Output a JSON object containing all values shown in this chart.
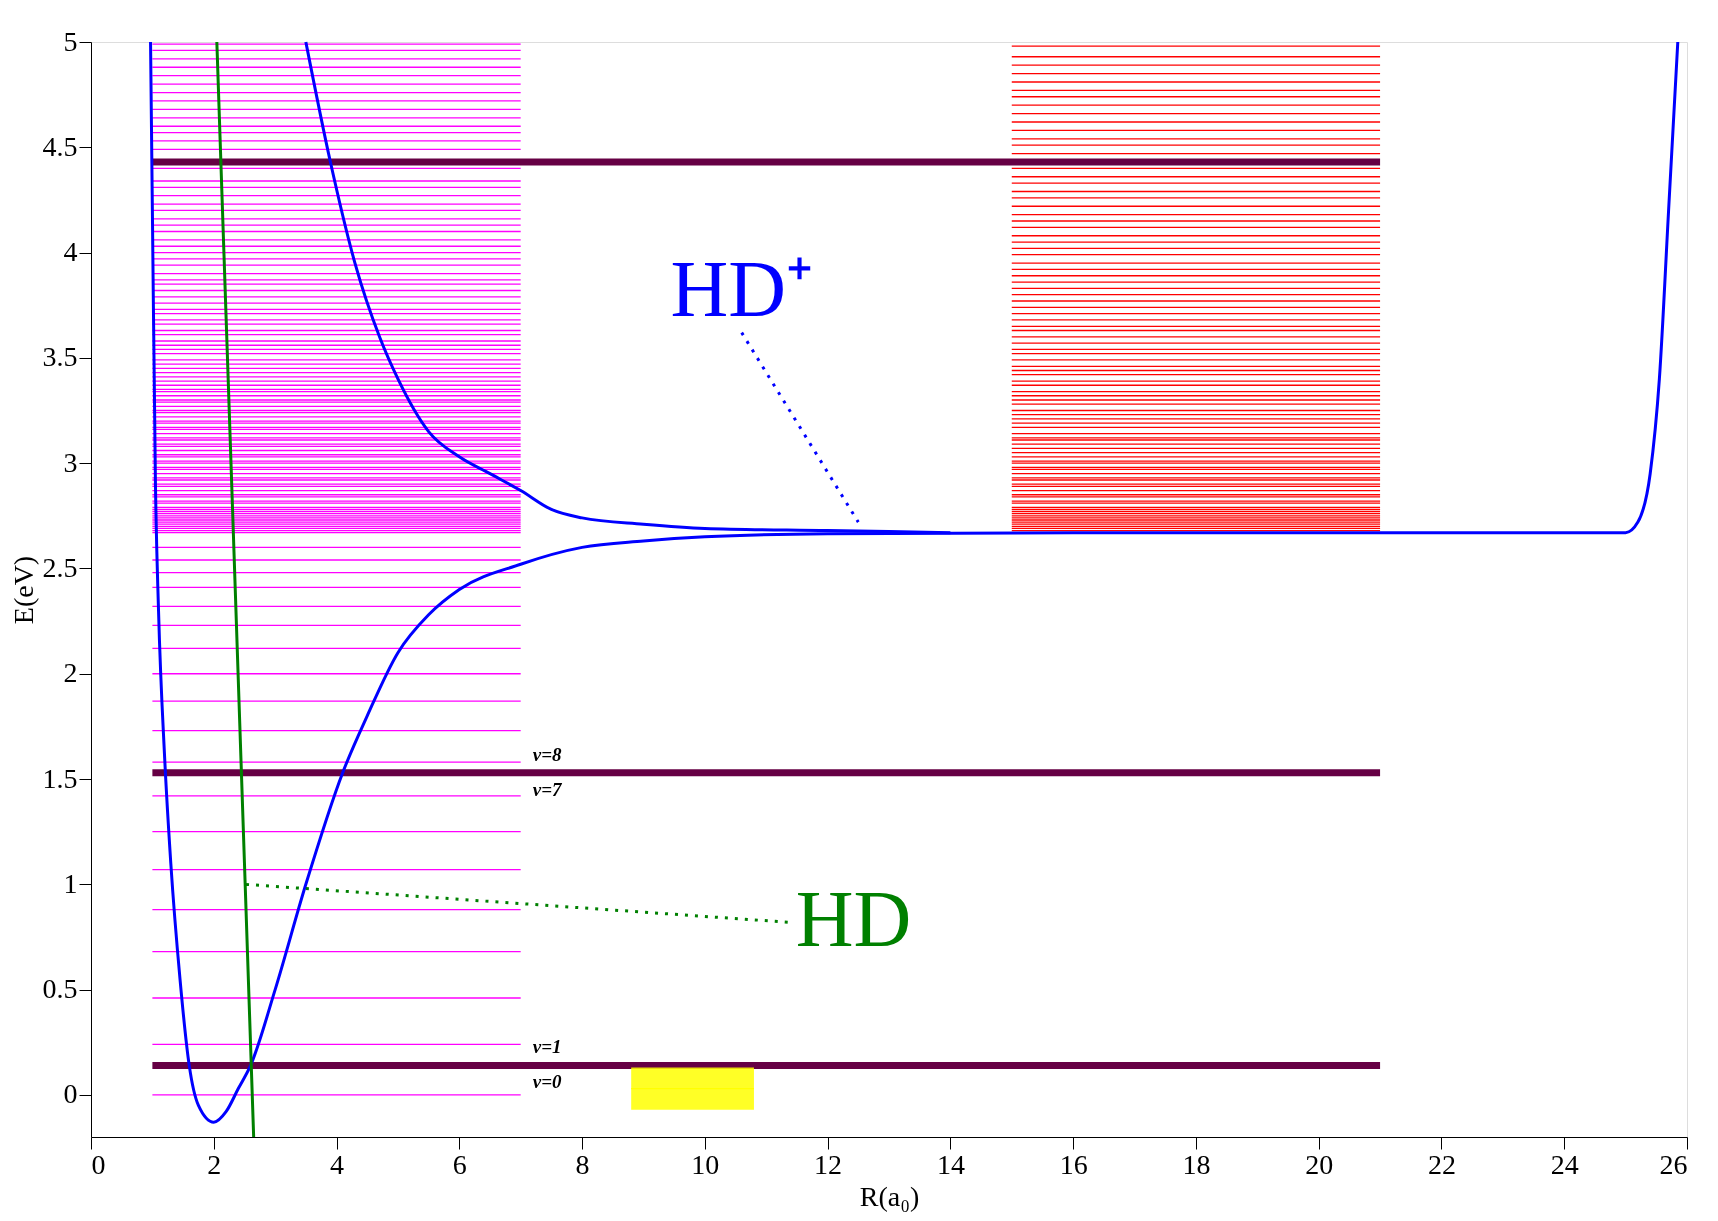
{
  "chart_data": {
    "type": "line",
    "xlabel": "R(a₀)",
    "ylabel": "E(eV)",
    "xlim": [
      0,
      26
    ],
    "ylim": [
      -0.2,
      5
    ],
    "xticks": [
      0,
      2,
      4,
      6,
      8,
      10,
      12,
      14,
      16,
      18,
      20,
      22,
      24,
      26
    ],
    "yticks": [
      0,
      0.5,
      1,
      1.5,
      2,
      2.5,
      3,
      3.5,
      4,
      4.5,
      5
    ],
    "grid": false,
    "annotations": [
      "HD⁺",
      "HD",
      "v=8",
      "v=7",
      "v=1",
      "v=0"
    ],
    "series": [
      {
        "color": "#ff00ff",
        "x": [
          1,
          7
        ],
        "values": [
          4.99,
          4.99
        ]
      },
      {
        "color": "#ff00ff",
        "x": [
          1,
          7
        ],
        "values": [
          4.96,
          4.96
        ]
      },
      {
        "color": "#ff00ff",
        "x": [
          1,
          7
        ],
        "values": [
          4.92,
          4.92
        ]
      },
      {
        "color": "#ff00ff",
        "x": [
          1,
          7
        ],
        "values": [
          4.88,
          4.88
        ]
      },
      {
        "color": "#ff00ff",
        "x": [
          1,
          7
        ],
        "values": [
          4.84,
          4.84
        ]
      },
      {
        "color": "#ff00ff",
        "x": [
          1,
          7
        ],
        "values": [
          4.8,
          4.8
        ]
      },
      {
        "color": "#ff00ff",
        "x": [
          1,
          7
        ],
        "values": [
          4.76,
          4.76
        ]
      },
      {
        "color": "#ff00ff",
        "x": [
          1,
          7
        ],
        "values": [
          4.72,
          4.72
        ]
      },
      {
        "color": "#ff00ff",
        "x": [
          1,
          7
        ],
        "values": [
          4.68,
          4.68
        ]
      },
      {
        "color": "#ff00ff",
        "x": [
          1,
          7
        ],
        "values": [
          4.64,
          4.64
        ]
      },
      {
        "color": "#ff00ff",
        "x": [
          1,
          7
        ],
        "values": [
          4.6,
          4.6
        ]
      },
      {
        "color": "#ff00ff",
        "x": [
          1,
          7
        ],
        "values": [
          4.57,
          4.57
        ]
      },
      {
        "color": "#ff00ff",
        "x": [
          1,
          7
        ],
        "values": [
          4.53,
          4.53
        ]
      },
      {
        "color": "#ff00ff",
        "x": [
          1,
          7
        ],
        "values": [
          4.49,
          4.49
        ]
      },
      {
        "color": "#ff00ff",
        "x": [
          1,
          7
        ],
        "values": [
          4.4,
          4.4
        ]
      },
      {
        "color": "#ff00ff",
        "x": [
          1,
          7
        ],
        "values": [
          4.34,
          4.34
        ]
      },
      {
        "color": "#ff00ff",
        "x": [
          1,
          7
        ],
        "values": [
          4.31,
          4.31
        ]
      },
      {
        "color": "#ff00ff",
        "x": [
          1,
          7
        ],
        "values": [
          4.27,
          4.27
        ]
      },
      {
        "color": "#ff00ff",
        "x": [
          1,
          7
        ],
        "values": [
          4.23,
          4.23
        ]
      },
      {
        "color": "#ff00ff",
        "x": [
          1,
          7
        ],
        "values": [
          4.2,
          4.2
        ]
      },
      {
        "color": "#ff00ff",
        "x": [
          1,
          7
        ],
        "values": [
          4.16,
          4.16
        ]
      },
      {
        "color": "#ff00ff",
        "x": [
          1,
          7
        ],
        "values": [
          4.13,
          4.13
        ]
      },
      {
        "color": "#ff00ff",
        "x": [
          1,
          7
        ],
        "values": [
          4.1,
          4.1
        ]
      },
      {
        "color": "#ff00ff",
        "x": [
          1,
          7
        ],
        "values": [
          4.06,
          4.06
        ]
      },
      {
        "color": "#ff00ff",
        "x": [
          1,
          7
        ],
        "values": [
          4.03,
          4.03
        ]
      },
      {
        "color": "#ff00ff",
        "x": [
          1,
          7
        ],
        "values": [
          4.0,
          4.0
        ]
      },
      {
        "color": "#ff00ff",
        "x": [
          1,
          7
        ],
        "values": [
          3.97,
          3.97
        ]
      },
      {
        "color": "#ff00ff",
        "x": [
          1,
          7
        ],
        "values": [
          3.94,
          3.94
        ]
      },
      {
        "color": "#ff00ff",
        "x": [
          1,
          7
        ],
        "values": [
          3.9,
          3.9
        ]
      },
      {
        "color": "#ff00ff",
        "x": [
          1,
          7
        ],
        "values": [
          3.87,
          3.87
        ]
      },
      {
        "color": "#ff00ff",
        "x": [
          1,
          7
        ],
        "values": [
          3.85,
          3.85
        ]
      },
      {
        "color": "#ff00ff",
        "x": [
          1,
          7
        ],
        "values": [
          3.82,
          3.82
        ]
      },
      {
        "color": "#ff00ff",
        "x": [
          1,
          7
        ],
        "values": [
          3.79,
          3.79
        ]
      },
      {
        "color": "#ff00ff",
        "x": [
          1,
          7
        ],
        "values": [
          3.76,
          3.76
        ]
      },
      {
        "color": "#ff00ff",
        "x": [
          1,
          7
        ],
        "values": [
          3.73,
          3.73
        ]
      },
      {
        "color": "#ff00ff",
        "x": [
          1,
          7
        ],
        "values": [
          3.71,
          3.71
        ]
      },
      {
        "color": "#ff00ff",
        "x": [
          1,
          7
        ],
        "values": [
          3.68,
          3.68
        ]
      },
      {
        "color": "#ff00ff",
        "x": [
          1,
          7
        ],
        "values": [
          3.66,
          3.66
        ]
      },
      {
        "color": "#ff00ff",
        "x": [
          1,
          7
        ],
        "values": [
          3.63,
          3.63
        ]
      },
      {
        "color": "#ff00ff",
        "x": [
          1,
          7
        ],
        "values": [
          3.61,
          3.61
        ]
      },
      {
        "color": "#ff00ff",
        "x": [
          1,
          7
        ],
        "values": [
          3.58,
          3.58
        ]
      },
      {
        "color": "#ff00ff",
        "x": [
          1,
          7
        ],
        "values": [
          3.56,
          3.56
        ]
      },
      {
        "color": "#ff00ff",
        "x": [
          1,
          7
        ],
        "values": [
          3.54,
          3.54
        ]
      },
      {
        "color": "#ff00ff",
        "x": [
          1,
          7
        ],
        "values": [
          3.52,
          3.52
        ]
      },
      {
        "color": "#ff00ff",
        "x": [
          1,
          7
        ],
        "values": [
          3.49,
          3.49
        ]
      },
      {
        "color": "#ff00ff",
        "x": [
          1,
          7
        ],
        "values": [
          3.47,
          3.47
        ]
      },
      {
        "color": "#ff00ff",
        "x": [
          1,
          7
        ],
        "values": [
          3.45,
          3.45
        ]
      },
      {
        "color": "#ff00ff",
        "x": [
          1,
          7
        ],
        "values": [
          3.43,
          3.43
        ]
      },
      {
        "color": "#ff00ff",
        "x": [
          1,
          7
        ],
        "values": [
          3.41,
          3.41
        ]
      },
      {
        "color": "#ff00ff",
        "x": [
          1,
          7
        ],
        "values": [
          3.39,
          3.39
        ]
      },
      {
        "color": "#ff00ff",
        "x": [
          1,
          7
        ],
        "values": [
          3.37,
          3.37
        ]
      },
      {
        "color": "#ff00ff",
        "x": [
          1,
          7
        ],
        "values": [
          3.35,
          3.35
        ]
      },
      {
        "color": "#ff00ff",
        "x": [
          1,
          7
        ],
        "values": [
          3.34,
          3.34
        ]
      },
      {
        "color": "#ff00ff",
        "x": [
          1,
          7
        ],
        "values": [
          3.32,
          3.32
        ]
      },
      {
        "color": "#ff00ff",
        "x": [
          1,
          7
        ],
        "values": [
          3.3,
          3.3
        ]
      },
      {
        "color": "#ff00ff",
        "x": [
          1,
          7
        ],
        "values": [
          3.29,
          3.29
        ]
      },
      {
        "color": "#ff00ff",
        "x": [
          1,
          7
        ],
        "values": [
          3.27,
          3.27
        ]
      },
      {
        "color": "#ff00ff",
        "x": [
          1,
          7
        ],
        "values": [
          3.25,
          3.25
        ]
      },
      {
        "color": "#ff00ff",
        "x": [
          1,
          7
        ],
        "values": [
          3.24,
          3.24
        ]
      },
      {
        "color": "#ff00ff",
        "x": [
          1,
          7
        ],
        "values": [
          3.22,
          3.22
        ]
      },
      {
        "color": "#ff00ff",
        "x": [
          1,
          7
        ],
        "values": [
          3.2,
          3.2
        ]
      },
      {
        "color": "#ff00ff",
        "x": [
          1,
          7
        ],
        "values": [
          3.19,
          3.19
        ]
      },
      {
        "color": "#ff00ff",
        "x": [
          1,
          7
        ],
        "values": [
          3.17,
          3.17
        ]
      },
      {
        "color": "#ff00ff",
        "x": [
          1,
          7
        ],
        "values": [
          3.16,
          3.16
        ]
      },
      {
        "color": "#ff00ff",
        "x": [
          1,
          7
        ],
        "values": [
          3.14,
          3.14
        ]
      },
      {
        "color": "#ff00ff",
        "x": [
          1,
          7
        ],
        "values": [
          3.12,
          3.12
        ]
      },
      {
        "color": "#ff00ff",
        "x": [
          1,
          7
        ],
        "values": [
          3.11,
          3.11
        ]
      },
      {
        "color": "#ff00ff",
        "x": [
          1,
          7
        ],
        "values": [
          3.09,
          3.09
        ]
      },
      {
        "color": "#ff00ff",
        "x": [
          1,
          7
        ],
        "values": [
          3.08,
          3.08
        ]
      },
      {
        "color": "#ff00ff",
        "x": [
          1,
          7
        ],
        "values": [
          3.06,
          3.06
        ]
      },
      {
        "color": "#ff00ff",
        "x": [
          1,
          7
        ],
        "values": [
          3.04,
          3.04
        ]
      },
      {
        "color": "#ff00ff",
        "x": [
          1,
          7
        ],
        "values": [
          3.03,
          3.03
        ]
      },
      {
        "color": "#ff00ff",
        "x": [
          1,
          7
        ],
        "values": [
          3.01,
          3.01
        ]
      },
      {
        "color": "#ff00ff",
        "x": [
          1,
          7
        ],
        "values": [
          3.0,
          3.0
        ]
      },
      {
        "color": "#ff00ff",
        "x": [
          1,
          7
        ],
        "values": [
          2.98,
          2.98
        ]
      },
      {
        "color": "#ff00ff",
        "x": [
          1,
          7
        ],
        "values": [
          2.97,
          2.97
        ]
      },
      {
        "color": "#ff00ff",
        "x": [
          1,
          7
        ],
        "values": [
          2.95,
          2.95
        ]
      },
      {
        "color": "#ff00ff",
        "x": [
          1,
          7
        ],
        "values": [
          2.93,
          2.93
        ]
      },
      {
        "color": "#ff00ff",
        "x": [
          1,
          7
        ],
        "values": [
          2.92,
          2.92
        ]
      },
      {
        "color": "#ff00ff",
        "x": [
          1,
          7
        ],
        "values": [
          2.9,
          2.9
        ]
      },
      {
        "color": "#ff00ff",
        "x": [
          1,
          7
        ],
        "values": [
          2.89,
          2.89
        ]
      },
      {
        "color": "#ff00ff",
        "x": [
          1,
          7
        ],
        "values": [
          2.87,
          2.87
        ]
      },
      {
        "color": "#ff00ff",
        "x": [
          1,
          7
        ],
        "values": [
          2.85,
          2.85
        ]
      },
      {
        "color": "#ff00ff",
        "x": [
          1,
          7
        ],
        "values": [
          2.84,
          2.84
        ]
      },
      {
        "color": "#ff00ff",
        "x": [
          1,
          7
        ],
        "values": [
          2.82,
          2.82
        ]
      },
      {
        "color": "#ff00ff",
        "x": [
          1,
          7
        ],
        "values": [
          2.81,
          2.81
        ]
      },
      {
        "color": "#ff00ff",
        "x": [
          1,
          7
        ],
        "values": [
          2.79,
          2.79
        ]
      },
      {
        "color": "#ff00ff",
        "x": [
          1,
          7
        ],
        "values": [
          2.78,
          2.78
        ]
      },
      {
        "color": "#ff00ff",
        "x": [
          1,
          7
        ],
        "values": [
          2.77,
          2.77
        ]
      },
      {
        "color": "#ff00ff",
        "x": [
          1,
          7
        ],
        "values": [
          2.76,
          2.76
        ]
      },
      {
        "color": "#ff00ff",
        "x": [
          1,
          7
        ],
        "values": [
          2.75,
          2.75
        ]
      },
      {
        "color": "#ff00ff",
        "x": [
          1,
          7
        ],
        "values": [
          2.74,
          2.74
        ]
      },
      {
        "color": "#ff00ff",
        "x": [
          1,
          7
        ],
        "values": [
          2.73,
          2.73
        ]
      },
      {
        "color": "#ff00ff",
        "x": [
          1,
          7
        ],
        "values": [
          2.72,
          2.72
        ]
      },
      {
        "color": "#ff00ff",
        "x": [
          1,
          7
        ],
        "values": [
          2.71,
          2.71
        ]
      },
      {
        "color": "#ff00ff",
        "x": [
          1,
          7
        ],
        "values": [
          2.7,
          2.7
        ]
      },
      {
        "color": "#ff00ff",
        "x": [
          1,
          7
        ],
        "values": [
          2.69,
          2.69
        ]
      },
      {
        "color": "#ff00ff",
        "x": [
          1,
          7
        ],
        "values": [
          2.68,
          2.68
        ]
      },
      {
        "color": "#ff00ff",
        "x": [
          1,
          7
        ],
        "values": [
          2.67,
          2.67
        ]
      },
      {
        "color": "#ff00ff",
        "x": [
          1,
          7
        ],
        "values": [
          2.6,
          2.6
        ]
      },
      {
        "color": "#ff00ff",
        "x": [
          1,
          7
        ],
        "values": [
          2.54,
          2.54
        ]
      },
      {
        "color": "#ff00ff",
        "x": [
          1,
          7
        ],
        "values": [
          2.48,
          2.48
        ]
      },
      {
        "color": "#ff00ff",
        "x": [
          1,
          7
        ],
        "values": [
          2.41,
          2.41
        ]
      },
      {
        "color": "#ff00ff",
        "x": [
          1,
          7
        ],
        "values": [
          2.32,
          2.32
        ]
      },
      {
        "color": "#ff00ff",
        "x": [
          1,
          7
        ],
        "values": [
          2.23,
          2.23
        ]
      },
      {
        "color": "#ff00ff",
        "x": [
          1,
          7
        ],
        "values": [
          2.12,
          2.12
        ]
      },
      {
        "color": "#ff00ff",
        "x": [
          1,
          7
        ],
        "values": [
          2.0,
          2.0
        ]
      },
      {
        "color": "#ff00ff",
        "x": [
          1,
          7
        ],
        "values": [
          1.87,
          1.87
        ]
      },
      {
        "color": "#ff00ff",
        "x": [
          1,
          7
        ],
        "values": [
          1.73,
          1.73
        ]
      },
      {
        "color": "#ff00ff",
        "x": [
          1,
          7
        ],
        "values": [
          1.58,
          1.58
        ]
      },
      {
        "color": "#ff00ff",
        "x": [
          1,
          7
        ],
        "values": [
          1.42,
          1.42
        ]
      },
      {
        "color": "#ff00ff",
        "x": [
          1,
          7
        ],
        "values": [
          1.25,
          1.25
        ]
      },
      {
        "color": "#ff00ff",
        "x": [
          1,
          7
        ],
        "values": [
          1.07,
          1.07
        ]
      },
      {
        "color": "#ff00ff",
        "x": [
          1,
          7
        ],
        "values": [
          0.88,
          0.88
        ]
      },
      {
        "color": "#ff00ff",
        "x": [
          1,
          7
        ],
        "values": [
          0.68,
          0.68
        ]
      },
      {
        "color": "#ff00ff",
        "x": [
          1,
          7
        ],
        "values": [
          0.46,
          0.46
        ]
      },
      {
        "color": "#ff00ff",
        "x": [
          1,
          7
        ],
        "values": [
          0.24,
          0.24
        ]
      },
      {
        "color": "#ff00ff",
        "x": [
          1,
          7
        ],
        "values": [
          0.0,
          0.0
        ]
      },
      {
        "color": "#ff0000",
        "x": [
          15,
          21
        ],
        "values": [
          4.98,
          4.98
        ]
      },
      {
        "color": "#ff0000",
        "x": [
          15,
          21
        ],
        "values": [
          4.93,
          4.93
        ]
      },
      {
        "color": "#ff0000",
        "x": [
          15,
          21
        ],
        "values": [
          4.89,
          4.89
        ]
      },
      {
        "color": "#ff0000",
        "x": [
          15,
          21
        ],
        "values": [
          4.85,
          4.85
        ]
      },
      {
        "color": "#ff0000",
        "x": [
          15,
          21
        ],
        "values": [
          4.81,
          4.81
        ]
      },
      {
        "color": "#ff0000",
        "x": [
          15,
          21
        ],
        "values": [
          4.77,
          4.77
        ]
      },
      {
        "color": "#ff0000",
        "x": [
          15,
          21
        ],
        "values": [
          4.74,
          4.74
        ]
      },
      {
        "color": "#ff0000",
        "x": [
          15,
          21
        ],
        "values": [
          4.7,
          4.7
        ]
      },
      {
        "color": "#ff0000",
        "x": [
          15,
          21
        ],
        "values": [
          4.66,
          4.66
        ]
      },
      {
        "color": "#ff0000",
        "x": [
          15,
          21
        ],
        "values": [
          4.62,
          4.62
        ]
      },
      {
        "color": "#ff0000",
        "x": [
          15,
          21
        ],
        "values": [
          4.58,
          4.58
        ]
      },
      {
        "color": "#ff0000",
        "x": [
          15,
          21
        ],
        "values": [
          4.54,
          4.54
        ]
      },
      {
        "color": "#ff0000",
        "x": [
          15,
          21
        ],
        "values": [
          4.51,
          4.51
        ]
      },
      {
        "color": "#ff0000",
        "x": [
          15,
          21
        ],
        "values": [
          4.47,
          4.47
        ]
      },
      {
        "color": "#ff0000",
        "x": [
          15,
          21
        ],
        "values": [
          4.4,
          4.4
        ]
      },
      {
        "color": "#ff0000",
        "x": [
          15,
          21
        ],
        "values": [
          4.36,
          4.36
        ]
      },
      {
        "color": "#ff0000",
        "x": [
          15,
          21
        ],
        "values": [
          4.33,
          4.33
        ]
      },
      {
        "color": "#ff0000",
        "x": [
          15,
          21
        ],
        "values": [
          4.29,
          4.29
        ]
      },
      {
        "color": "#ff0000",
        "x": [
          15,
          21
        ],
        "values": [
          4.26,
          4.26
        ]
      },
      {
        "color": "#ff0000",
        "x": [
          15,
          21
        ],
        "values": [
          4.22,
          4.22
        ]
      },
      {
        "color": "#ff0000",
        "x": [
          15,
          21
        ],
        "values": [
          4.18,
          4.18
        ]
      },
      {
        "color": "#ff0000",
        "x": [
          15,
          21
        ],
        "values": [
          4.15,
          4.15
        ]
      },
      {
        "color": "#ff0000",
        "x": [
          15,
          21
        ],
        "values": [
          4.12,
          4.12
        ]
      },
      {
        "color": "#ff0000",
        "x": [
          15,
          21
        ],
        "values": [
          4.08,
          4.08
        ]
      },
      {
        "color": "#ff0000",
        "x": [
          15,
          21
        ],
        "values": [
          4.05,
          4.05
        ]
      },
      {
        "color": "#ff0000",
        "x": [
          15,
          21
        ],
        "values": [
          4.02,
          4.02
        ]
      },
      {
        "color": "#ff0000",
        "x": [
          15,
          21
        ],
        "values": [
          3.99,
          3.99
        ]
      },
      {
        "color": "#ff0000",
        "x": [
          15,
          21
        ],
        "values": [
          3.95,
          3.95
        ]
      },
      {
        "color": "#ff0000",
        "x": [
          15,
          21
        ],
        "values": [
          3.92,
          3.92
        ]
      },
      {
        "color": "#ff0000",
        "x": [
          15,
          21
        ],
        "values": [
          3.89,
          3.89
        ]
      },
      {
        "color": "#ff0000",
        "x": [
          15,
          21
        ],
        "values": [
          3.86,
          3.86
        ]
      },
      {
        "color": "#ff0000",
        "x": [
          15,
          21
        ],
        "values": [
          3.83,
          3.83
        ]
      },
      {
        "color": "#ff0000",
        "x": [
          15,
          21
        ],
        "values": [
          3.8,
          3.8
        ]
      },
      {
        "color": "#ff0000",
        "x": [
          15,
          21
        ],
        "values": [
          3.77,
          3.77
        ]
      },
      {
        "color": "#ff0000",
        "x": [
          15,
          21
        ],
        "values": [
          3.74,
          3.74
        ]
      },
      {
        "color": "#ff0000",
        "x": [
          15,
          21
        ],
        "values": [
          3.71,
          3.71
        ]
      },
      {
        "color": "#ff0000",
        "x": [
          15,
          21
        ],
        "values": [
          3.68,
          3.68
        ]
      },
      {
        "color": "#ff0000",
        "x": [
          15,
          21
        ],
        "values": [
          3.65,
          3.65
        ]
      },
      {
        "color": "#ff0000",
        "x": [
          15,
          21
        ],
        "values": [
          3.63,
          3.63
        ]
      },
      {
        "color": "#ff0000",
        "x": [
          15,
          21
        ],
        "values": [
          3.6,
          3.6
        ]
      },
      {
        "color": "#ff0000",
        "x": [
          15,
          21
        ],
        "values": [
          3.57,
          3.57
        ]
      },
      {
        "color": "#ff0000",
        "x": [
          15,
          21
        ],
        "values": [
          3.54,
          3.54
        ]
      },
      {
        "color": "#ff0000",
        "x": [
          15,
          21
        ],
        "values": [
          3.52,
          3.52
        ]
      },
      {
        "color": "#ff0000",
        "x": [
          15,
          21
        ],
        "values": [
          3.49,
          3.49
        ]
      },
      {
        "color": "#ff0000",
        "x": [
          15,
          21
        ],
        "values": [
          3.46,
          3.46
        ]
      },
      {
        "color": "#ff0000",
        "x": [
          15,
          21
        ],
        "values": [
          3.44,
          3.44
        ]
      },
      {
        "color": "#ff0000",
        "x": [
          15,
          21
        ],
        "values": [
          3.42,
          3.42
        ]
      },
      {
        "color": "#ff0000",
        "x": [
          15,
          21
        ],
        "values": [
          3.39,
          3.39
        ]
      },
      {
        "color": "#ff0000",
        "x": [
          15,
          21
        ],
        "values": [
          3.37,
          3.37
        ]
      },
      {
        "color": "#ff0000",
        "x": [
          15,
          21
        ],
        "values": [
          3.34,
          3.34
        ]
      },
      {
        "color": "#ff0000",
        "x": [
          15,
          21
        ],
        "values": [
          3.32,
          3.32
        ]
      },
      {
        "color": "#ff0000",
        "x": [
          15,
          21
        ],
        "values": [
          3.3,
          3.3
        ]
      },
      {
        "color": "#ff0000",
        "x": [
          15,
          21
        ],
        "values": [
          3.28,
          3.28
        ]
      },
      {
        "color": "#ff0000",
        "x": [
          15,
          21
        ],
        "values": [
          3.25,
          3.25
        ]
      },
      {
        "color": "#ff0000",
        "x": [
          15,
          21
        ],
        "values": [
          3.23,
          3.23
        ]
      },
      {
        "color": "#ff0000",
        "x": [
          15,
          21
        ],
        "values": [
          3.21,
          3.21
        ]
      },
      {
        "color": "#ff0000",
        "x": [
          15,
          21
        ],
        "values": [
          3.19,
          3.19
        ]
      },
      {
        "color": "#ff0000",
        "x": [
          15,
          21
        ],
        "values": [
          3.17,
          3.17
        ]
      },
      {
        "color": "#ff0000",
        "x": [
          15,
          21
        ],
        "values": [
          3.14,
          3.14
        ]
      },
      {
        "color": "#ff0000",
        "x": [
          15,
          21
        ],
        "values": [
          3.12,
          3.12
        ]
      },
      {
        "color": "#ff0000",
        "x": [
          15,
          21
        ],
        "values": [
          3.11,
          3.11
        ]
      },
      {
        "color": "#ff0000",
        "x": [
          15,
          21
        ],
        "values": [
          3.09,
          3.09
        ]
      },
      {
        "color": "#ff0000",
        "x": [
          15,
          21
        ],
        "values": [
          3.07,
          3.07
        ]
      },
      {
        "color": "#ff0000",
        "x": [
          15,
          21
        ],
        "values": [
          3.05,
          3.05
        ]
      },
      {
        "color": "#ff0000",
        "x": [
          15,
          21
        ],
        "values": [
          3.03,
          3.03
        ]
      },
      {
        "color": "#ff0000",
        "x": [
          15,
          21
        ],
        "values": [
          3.01,
          3.01
        ]
      },
      {
        "color": "#ff0000",
        "x": [
          15,
          21
        ],
        "values": [
          3.0,
          3.0
        ]
      },
      {
        "color": "#ff0000",
        "x": [
          15,
          21
        ],
        "values": [
          2.98,
          2.98
        ]
      },
      {
        "color": "#ff0000",
        "x": [
          15,
          21
        ],
        "values": [
          2.97,
          2.97
        ]
      },
      {
        "color": "#ff0000",
        "x": [
          15,
          21
        ],
        "values": [
          2.95,
          2.95
        ]
      },
      {
        "color": "#ff0000",
        "x": [
          15,
          21
        ],
        "values": [
          2.93,
          2.93
        ]
      },
      {
        "color": "#ff0000",
        "x": [
          15,
          21
        ],
        "values": [
          2.92,
          2.92
        ]
      },
      {
        "color": "#ff0000",
        "x": [
          15,
          21
        ],
        "values": [
          2.9,
          2.9
        ]
      },
      {
        "color": "#ff0000",
        "x": [
          15,
          21
        ],
        "values": [
          2.89,
          2.89
        ]
      },
      {
        "color": "#ff0000",
        "x": [
          15,
          21
        ],
        "values": [
          2.87,
          2.87
        ]
      },
      {
        "color": "#ff0000",
        "x": [
          15,
          21
        ],
        "values": [
          2.85,
          2.85
        ]
      },
      {
        "color": "#ff0000",
        "x": [
          15,
          21
        ],
        "values": [
          2.84,
          2.84
        ]
      },
      {
        "color": "#ff0000",
        "x": [
          15,
          21
        ],
        "values": [
          2.82,
          2.82
        ]
      },
      {
        "color": "#ff0000",
        "x": [
          15,
          21
        ],
        "values": [
          2.81,
          2.81
        ]
      },
      {
        "color": "#ff0000",
        "x": [
          15,
          21
        ],
        "values": [
          2.79,
          2.79
        ]
      },
      {
        "color": "#ff0000",
        "x": [
          15,
          21
        ],
        "values": [
          2.78,
          2.78
        ]
      },
      {
        "color": "#ff0000",
        "x": [
          15,
          21
        ],
        "values": [
          2.77,
          2.77
        ]
      },
      {
        "color": "#ff0000",
        "x": [
          15,
          21
        ],
        "values": [
          2.76,
          2.76
        ]
      },
      {
        "color": "#ff0000",
        "x": [
          15,
          21
        ],
        "values": [
          2.75,
          2.75
        ]
      },
      {
        "color": "#ff0000",
        "x": [
          15,
          21
        ],
        "values": [
          2.74,
          2.74
        ]
      },
      {
        "color": "#ff0000",
        "x": [
          15,
          21
        ],
        "values": [
          2.73,
          2.73
        ]
      },
      {
        "color": "#ff0000",
        "x": [
          15,
          21
        ],
        "values": [
          2.72,
          2.72
        ]
      },
      {
        "color": "#ff0000",
        "x": [
          15,
          21
        ],
        "values": [
          2.71,
          2.71
        ]
      },
      {
        "color": "#ff0000",
        "x": [
          15,
          21
        ],
        "values": [
          2.7,
          2.7
        ]
      },
      {
        "color": "#ff0000",
        "x": [
          15,
          21
        ],
        "values": [
          2.69,
          2.69
        ]
      },
      {
        "color": "#ff0000",
        "x": [
          15,
          21
        ],
        "values": [
          2.68,
          2.68
        ]
      },
      {
        "color": "#660044",
        "x": [
          1,
          11,
          21
        ],
        "values": [
          4.43,
          4.43,
          4.43
        ]
      },
      {
        "color": "#660044",
        "x": [
          1,
          11,
          21
        ],
        "values": [
          1.53,
          1.53,
          1.53
        ]
      },
      {
        "color": "#660044",
        "x": [
          1,
          11,
          21
        ],
        "values": [
          0.14,
          0.14,
          0.14
        ]
      },
      {
        "color": "#ffff00",
        "x": [
          8.8,
          10.8
        ],
        "values": [
          0.03,
          0.03
        ],
        "lower": [
          -0.07,
          -0.07
        ],
        "upper": [
          0.13,
          0.13
        ]
      },
      {
        "color": "#0000ff",
        "x": [
          0.97,
          1.0,
          1.05,
          1.1,
          1.2,
          1.3,
          1.45,
          1.6,
          1.75,
          2.0,
          2.2,
          2.4,
          2.6,
          3.0,
          3.5,
          4.1,
          4.5,
          5.0,
          5.5,
          6.0,
          7.0,
          8.0,
          9.0,
          10.0,
          12.0,
          16.0,
          20.0,
          25.0,
          25.2,
          25.4,
          25.55,
          25.7,
          25.85
        ],
        "values": [
          5.0,
          4.2,
          2.9,
          2.3,
          1.6,
          1.1,
          0.55,
          0.14,
          -0.05,
          -0.13,
          -0.08,
          0.03,
          0.14,
          0.5,
          1.0,
          1.53,
          1.8,
          2.1,
          2.28,
          2.4,
          2.52,
          2.6,
          2.63,
          2.65,
          2.665,
          2.67,
          2.67,
          2.67,
          2.72,
          2.95,
          3.4,
          4.2,
          5.0
        ]
      },
      {
        "color": "#0000ff",
        "x": [
          3.5,
          3.9,
          4.3,
          4.7,
          5.0,
          5.5,
          6.0,
          6.5,
          7.0,
          7.5,
          8.0,
          9.0,
          10.0,
          12.0,
          14.0
        ],
        "values": [
          5.0,
          4.43,
          3.95,
          3.6,
          3.4,
          3.15,
          3.03,
          2.95,
          2.87,
          2.78,
          2.74,
          2.71,
          2.69,
          2.68,
          2.67
        ]
      },
      {
        "color": "#008000",
        "x": [
          2.05,
          2.35,
          2.65
        ],
        "values": [
          5.0,
          2.4,
          -0.2
        ]
      },
      {
        "line_style": "dotted",
        "color": "#0000ff",
        "x": [
          10.6,
          12.5
        ],
        "values": [
          3.62,
          2.72
        ]
      },
      {
        "line_style": "dotted",
        "color": "#008000",
        "x": [
          11.35,
          2.5
        ],
        "values": [
          0.82,
          1.0
        ]
      }
    ]
  }
}
